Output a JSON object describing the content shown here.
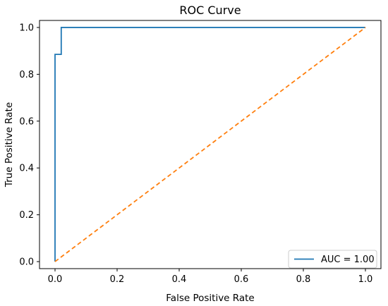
{
  "chart_data": {
    "type": "line",
    "title": "ROC Curve",
    "xlabel": "False Positive Rate",
    "ylabel": "True Positive Rate",
    "xlim": [
      -0.05,
      1.05
    ],
    "ylim": [
      -0.03,
      1.03
    ],
    "x_ticks": [
      0.0,
      0.2,
      0.4,
      0.6,
      0.8,
      1.0
    ],
    "x_tick_labels": [
      "0.0",
      "0.2",
      "0.4",
      "0.6",
      "0.8",
      "1.0"
    ],
    "y_ticks": [
      0.0,
      0.2,
      0.4,
      0.6,
      0.8,
      1.0
    ],
    "y_tick_labels": [
      "0.0",
      "0.2",
      "0.4",
      "0.6",
      "0.8",
      "1.0"
    ],
    "grid": false,
    "legend_position": "lower-right",
    "series": [
      {
        "name": "AUC = 1.00",
        "color": "#1f77b4",
        "style": "solid",
        "x": [
          0.0,
          0.0,
          0.0,
          0.02,
          0.02,
          1.0
        ],
        "y": [
          0.0,
          0.885,
          0.885,
          0.885,
          1.0,
          1.0
        ]
      },
      {
        "color": "#ff7f0e",
        "style": "dashed",
        "x": [
          0.0,
          1.0
        ],
        "y": [
          0.0,
          1.0
        ]
      }
    ]
  }
}
